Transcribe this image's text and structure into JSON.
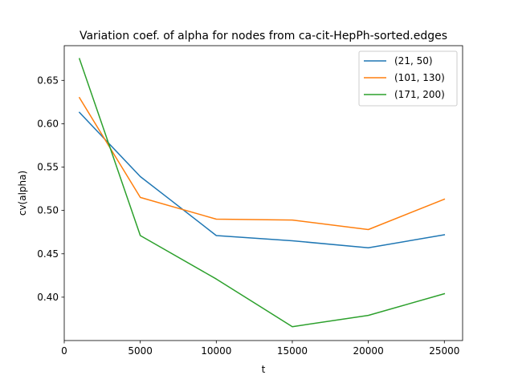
{
  "chart_data": {
    "type": "line",
    "title": "Variation coef. of alpha for nodes from ca-cit-HepPh-sorted.edges",
    "xlabel": "t",
    "ylabel": "cv(alpha)",
    "xlim": [
      0,
      26200
    ],
    "ylim": [
      0.35,
      0.69
    ],
    "xticks": [
      0,
      5000,
      10000,
      15000,
      20000,
      25000
    ],
    "yticks": [
      0.4,
      0.45,
      0.5,
      0.55,
      0.6,
      0.65
    ],
    "xtick_labels": [
      "0",
      "5000",
      "10000",
      "15000",
      "20000",
      "25000"
    ],
    "ytick_labels": [
      "0.40",
      "0.45",
      "0.50",
      "0.55",
      "0.60",
      "0.65"
    ],
    "grid": false,
    "legend_position": "top-right",
    "series": [
      {
        "name": "(21, 50)",
        "color": "#1f77b4",
        "x": [
          1000,
          5000,
          7000,
          10000,
          15000,
          20000,
          25000
        ],
        "values": [
          0.613,
          0.539,
          0.512,
          0.471,
          0.465,
          0.457,
          0.472
        ]
      },
      {
        "name": "(101, 130)",
        "color": "#ff7f0e",
        "x": [
          1000,
          5000,
          10000,
          15000,
          20000,
          25000
        ],
        "values": [
          0.63,
          0.515,
          0.49,
          0.489,
          0.478,
          0.513
        ]
      },
      {
        "name": "(171, 200)",
        "color": "#2ca02c",
        "x": [
          1000,
          5000,
          10000,
          15000,
          20000,
          25000
        ],
        "values": [
          0.675,
          0.471,
          0.421,
          0.366,
          0.379,
          0.404
        ]
      }
    ]
  }
}
